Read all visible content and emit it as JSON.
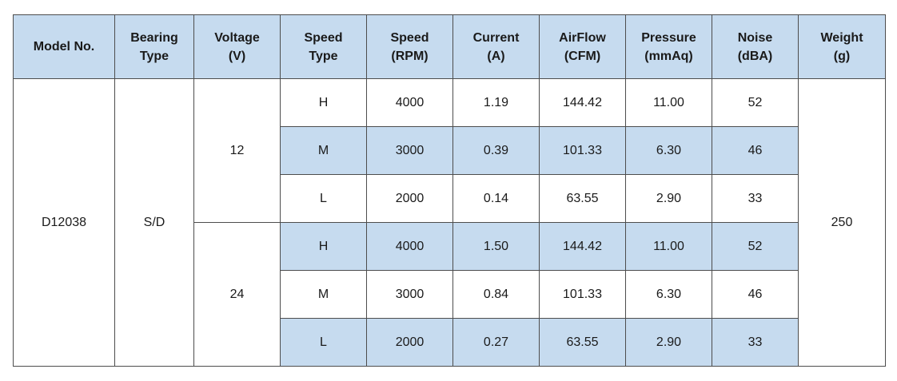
{
  "table": {
    "headers": [
      [
        "Model No."
      ],
      [
        "Bearing",
        "Type"
      ],
      [
        "Voltage",
        "(V)"
      ],
      [
        "Speed",
        "Type"
      ],
      [
        "Speed",
        "(RPM)"
      ],
      [
        "Current",
        "(A)"
      ],
      [
        "AirFlow",
        "(CFM)"
      ],
      [
        "Pressure",
        "(mmAq)"
      ],
      [
        "Noise",
        "(dBA)"
      ],
      [
        "Weight",
        "(g)"
      ]
    ],
    "model": "D12038",
    "bearing": "S/D",
    "weight": "250",
    "groups": [
      {
        "voltage": "12",
        "rows": [
          [
            "H",
            "4000",
            "1.19",
            "144.42",
            "11.00",
            "52"
          ],
          [
            "M",
            "3000",
            "0.39",
            "101.33",
            "6.30",
            "46"
          ],
          [
            "L",
            "2000",
            "0.14",
            "63.55",
            "2.90",
            "33"
          ]
        ]
      },
      {
        "voltage": "24",
        "rows": [
          [
            "H",
            "4000",
            "1.50",
            "144.42",
            "11.00",
            "52"
          ],
          [
            "M",
            "3000",
            "0.84",
            "101.33",
            "6.30",
            "46"
          ],
          [
            "L",
            "2000",
            "0.27",
            "63.55",
            "2.90",
            "33"
          ]
        ]
      }
    ]
  }
}
